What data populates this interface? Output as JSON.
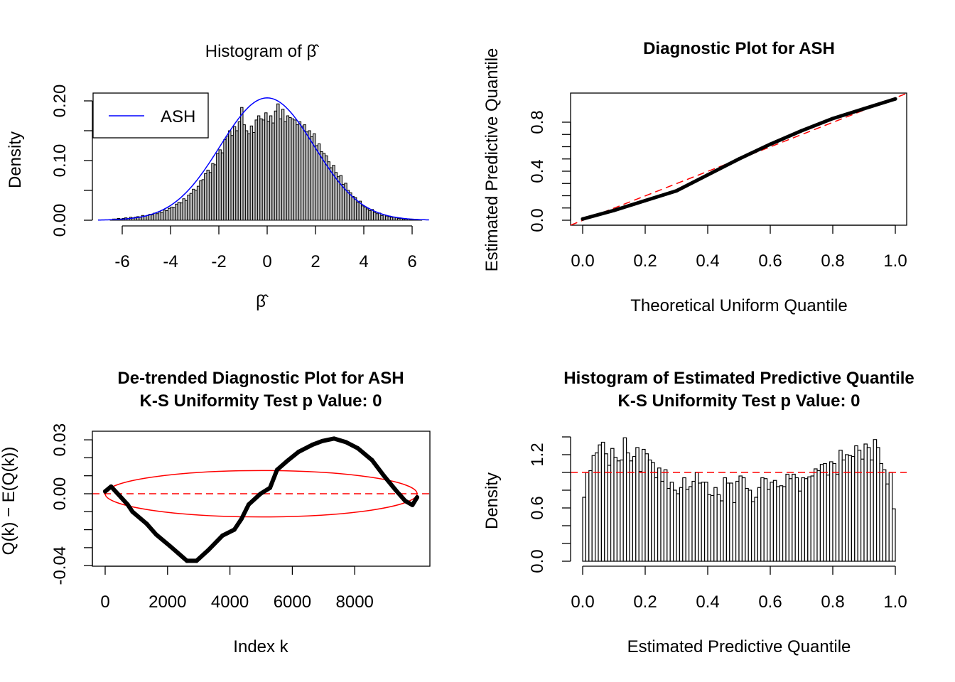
{
  "chart_data": [
    {
      "type": "bar",
      "title": "Histogram of β̂",
      "xlabel": "β̂",
      "ylabel": "Density",
      "xlim": [
        -7,
        6.7
      ],
      "ylim": [
        0,
        0.2
      ],
      "xticks": [
        "-6",
        "-4",
        "-2",
        "0",
        "2",
        "4",
        "6"
      ],
      "yticks": [
        "0.00",
        "0.10",
        "0.20"
      ],
      "bin_start": -6.5,
      "bin_width": 0.1,
      "values": [
        0.001,
        0.002,
        0.002,
        0.003,
        0.002,
        0.003,
        0.004,
        0.003,
        0.005,
        0.004,
        0.005,
        0.006,
        0.005,
        0.008,
        0.007,
        0.008,
        0.01,
        0.009,
        0.012,
        0.011,
        0.014,
        0.013,
        0.017,
        0.016,
        0.02,
        0.022,
        0.021,
        0.027,
        0.03,
        0.029,
        0.036,
        0.033,
        0.042,
        0.045,
        0.052,
        0.05,
        0.057,
        0.066,
        0.068,
        0.078,
        0.084,
        0.08,
        0.095,
        0.093,
        0.112,
        0.118,
        0.113,
        0.135,
        0.141,
        0.15,
        0.142,
        0.157,
        0.15,
        0.165,
        0.189,
        0.16,
        0.15,
        0.145,
        0.158,
        0.147,
        0.168,
        0.175,
        0.17,
        0.168,
        0.18,
        0.166,
        0.175,
        0.163,
        0.183,
        0.195,
        0.17,
        0.186,
        0.165,
        0.175,
        0.172,
        0.17,
        0.168,
        0.16,
        0.165,
        0.158,
        0.16,
        0.148,
        0.15,
        0.14,
        0.145,
        0.125,
        0.128,
        0.115,
        0.112,
        0.108,
        0.098,
        0.088,
        0.092,
        0.08,
        0.073,
        0.075,
        0.06,
        0.062,
        0.05,
        0.046,
        0.04,
        0.038,
        0.03,
        0.032,
        0.024,
        0.022,
        0.019,
        0.016,
        0.018,
        0.013,
        0.011,
        0.012,
        0.008,
        0.009,
        0.007,
        0.006,
        0.005,
        0.005,
        0.004,
        0.003,
        0.003,
        0.002,
        0.002,
        0.002,
        0.001,
        0.001,
        0.001,
        0.001,
        0.001,
        0.0
      ],
      "curve": {
        "name": "ASH",
        "color": "#0000ff",
        "mean": 0,
        "peak_density": 0.205
      },
      "legend": {
        "entries": [
          "ASH"
        ],
        "placement": "top-left"
      },
      "bar_fill": "#bebebe"
    },
    {
      "type": "line",
      "title": "Diagnostic Plot for ASH",
      "xlabel": "Theoretical Uniform Quantile",
      "ylabel": "Estimated Predictive Quantile",
      "xlim": [
        0,
        1
      ],
      "ylim": [
        0,
        1
      ],
      "xticks": [
        "0.0",
        "0.2",
        "0.4",
        "0.6",
        "0.8",
        "1.0"
      ],
      "yticks": [
        "0.0",
        "0.4",
        "0.8"
      ],
      "x": [
        0,
        0.1,
        0.2,
        0.3,
        0.4,
        0.5,
        0.6,
        0.7,
        0.8,
        0.9,
        1.0
      ],
      "y": [
        0.01,
        0.08,
        0.16,
        0.24,
        0.37,
        0.5,
        0.62,
        0.73,
        0.83,
        0.91,
        0.99
      ],
      "reference_line": {
        "slope": 1,
        "intercept": 0,
        "color": "#ff0000",
        "style": "dashed"
      }
    },
    {
      "type": "line",
      "title": "De-trended Diagnostic Plot for ASH",
      "subtitle": "K-S Uniformity Test p Value: 0",
      "xlabel": "Index k",
      "ylabel": "Q(k) − E(Q(k))",
      "xlim": [
        0,
        10000
      ],
      "ylim": [
        -0.04,
        0.03
      ],
      "xticks": [
        "0",
        "2000",
        "4000",
        "6000",
        "8000"
      ],
      "yticks": [
        "-0.04",
        "0.00",
        "0.03"
      ],
      "x": [
        0,
        190,
        720,
        875,
        1330,
        1635,
        2090,
        2620,
        2930,
        3310,
        3760,
        4140,
        4370,
        4600,
        4980,
        5285,
        5510,
        5820,
        6200,
        6650,
        6960,
        7340,
        7720,
        8100,
        8555,
        8935,
        9315,
        9620,
        9850,
        10000
      ],
      "y": [
        0.0013,
        0.004,
        -0.006,
        -0.01,
        -0.0167,
        -0.0227,
        -0.0293,
        -0.0373,
        -0.0373,
        -0.0313,
        -0.0233,
        -0.02,
        -0.014,
        -0.006,
        0.0,
        0.0033,
        0.0133,
        0.018,
        0.0233,
        0.0273,
        0.0293,
        0.0307,
        0.0287,
        0.0253,
        0.0187,
        0.01,
        0.002,
        -0.004,
        -0.0063,
        -0.002
      ],
      "reference_line": {
        "y": 0,
        "color": "#ff0000",
        "style": "dashed"
      },
      "ellipse": {
        "center": [
          5000,
          0
        ],
        "x_radius": 5000,
        "y_radius": 0.0129,
        "color": "#ff0000"
      }
    },
    {
      "type": "bar",
      "title": "Histogram of Estimated Predictive Quantile",
      "subtitle": "K-S Uniformity Test p Value: 0",
      "xlabel": "Estimated Predictive Quantile",
      "ylabel": "Density",
      "xlim": [
        0,
        1
      ],
      "ylim": [
        0,
        1.4
      ],
      "xticks": [
        "0.0",
        "0.2",
        "0.4",
        "0.6",
        "0.8",
        "1.0"
      ],
      "yticks": [
        "0.0",
        "0.6",
        "1.2"
      ],
      "bin_start": 0,
      "bin_width": 0.01,
      "values": [
        0.72,
        1.0,
        1.02,
        1.19,
        1.22,
        1.31,
        1.34,
        1.21,
        1.08,
        1.27,
        1.17,
        1.13,
        1.14,
        1.39,
        1.22,
        1.13,
        1.18,
        1.28,
        1.01,
        1.26,
        1.21,
        1.14,
        1.11,
        0.94,
        1.05,
        0.9,
        1.03,
        0.82,
        0.89,
        0.8,
        0.76,
        0.83,
        0.94,
        0.81,
        0.84,
        0.9,
        1.0,
        0.88,
        0.89,
        0.89,
        0.75,
        0.74,
        0.83,
        0.75,
        0.68,
        0.94,
        0.88,
        0.88,
        0.66,
        0.9,
        0.96,
        0.94,
        0.82,
        0.8,
        0.67,
        0.72,
        0.83,
        0.94,
        0.93,
        0.81,
        0.89,
        0.91,
        0.84,
        0.85,
        0.84,
        0.98,
        0.93,
        0.98,
        0.94,
        0.79,
        0.94,
        0.93,
        0.95,
        0.96,
        1.04,
        1.02,
        1.09,
        1.1,
        0.97,
        1.12,
        1.1,
        0.98,
        1.25,
        1.14,
        1.2,
        1.19,
        1.18,
        1.3,
        1.25,
        1.15,
        1.32,
        1.28,
        1.14,
        1.37,
        1.28,
        1.1,
        1.03,
        0.87,
        1.0,
        0.59
      ],
      "reference_line": {
        "y": 1,
        "color": "#ff0000",
        "style": "dashed"
      }
    }
  ]
}
